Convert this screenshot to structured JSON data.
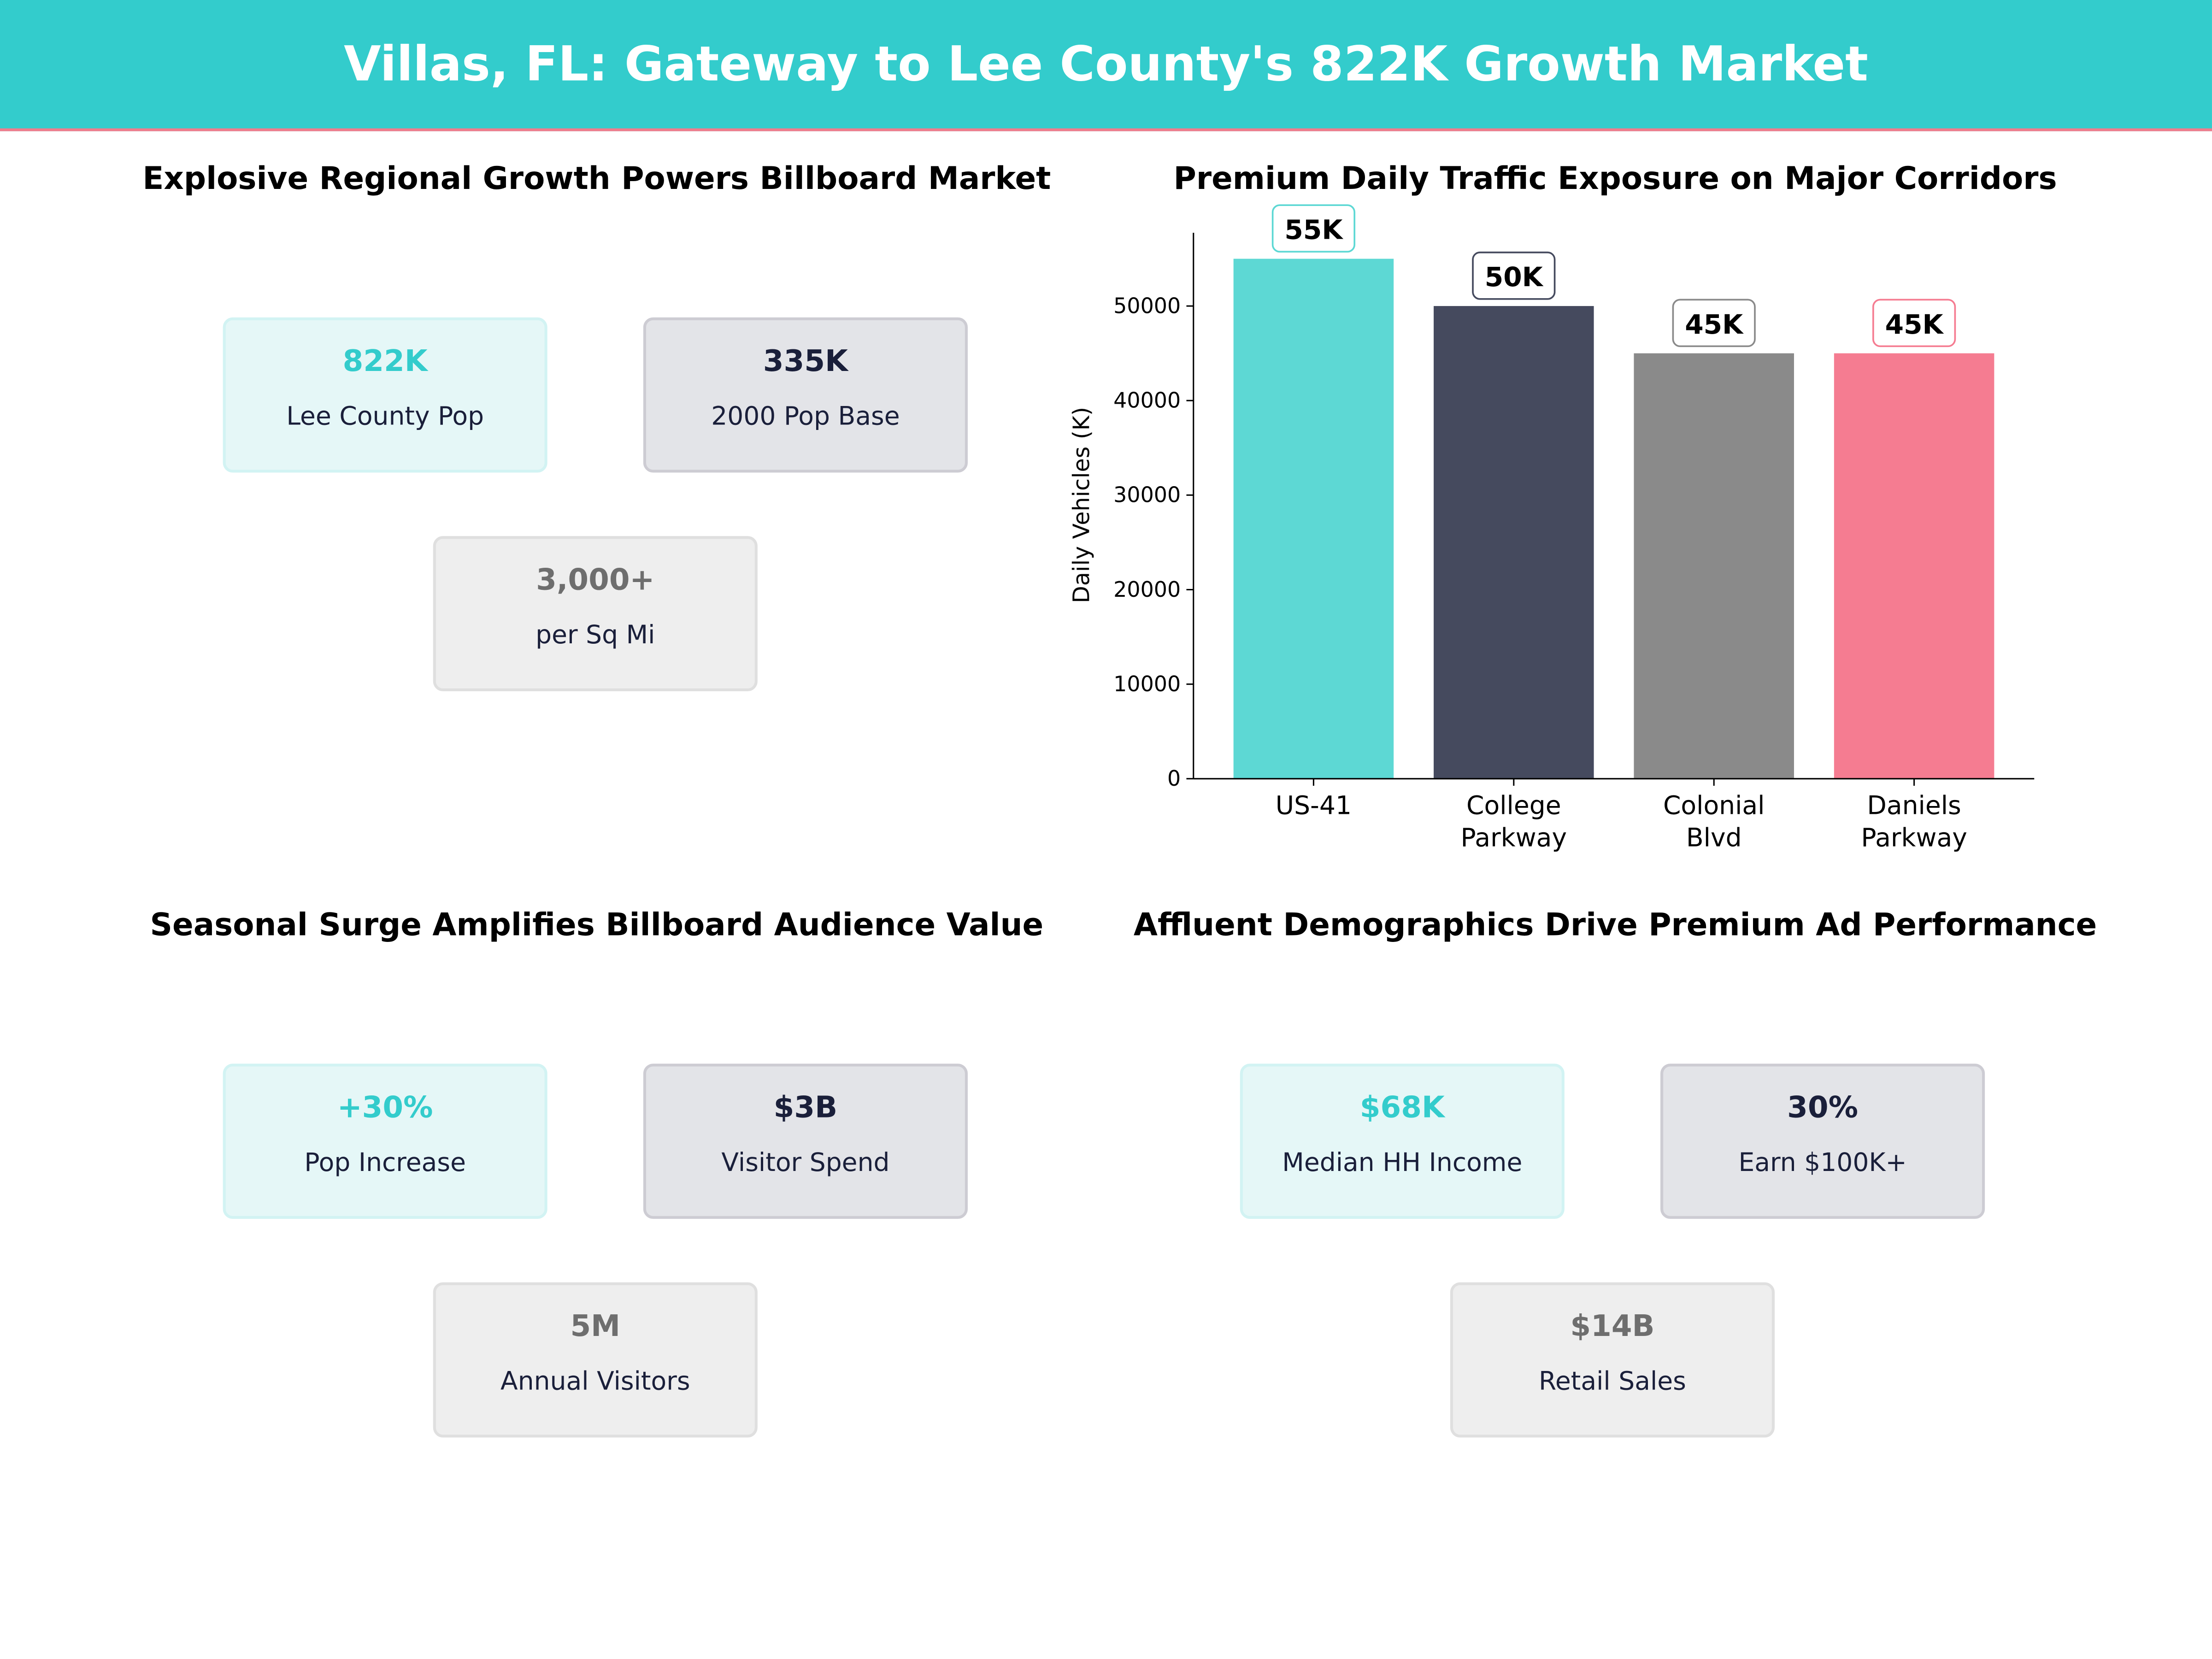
{
  "title": "Villas, FL: Gateway to Lee County's 822K Growth Market",
  "colors": {
    "header": "#33CCCC",
    "accent_line": "#F07C8C",
    "teal": "#33CCCC",
    "dark": "#1A1F3A",
    "gray": "#6E6E6E"
  },
  "panels": [
    {
      "title": "Explosive Regional Growth Powers Billboard Market",
      "cards": [
        {
          "value": "822K",
          "label": "Lee County Pop",
          "style": "teal"
        },
        {
          "value": "335K",
          "label": "2000 Pop Base",
          "style": "dark"
        },
        {
          "value": "3,000+",
          "label": "per Sq Mi",
          "style": "gray"
        }
      ]
    },
    {
      "title": "Premium Daily Traffic Exposure on Major Corridors"
    },
    {
      "title": "Seasonal Surge Amplifies Billboard Audience Value",
      "cards": [
        {
          "value": "+30%",
          "label": "Pop Increase",
          "style": "teal"
        },
        {
          "value": "$3B",
          "label": "Visitor Spend",
          "style": "dark"
        },
        {
          "value": "5M",
          "label": "Annual Visitors",
          "style": "gray"
        }
      ]
    },
    {
      "title": "Affluent Demographics Drive Premium Ad Performance",
      "cards": [
        {
          "value": "$68K",
          "label": "Median HH Income",
          "style": "teal"
        },
        {
          "value": "30%",
          "label": "Earn $100K+",
          "style": "dark"
        },
        {
          "value": "$14B",
          "label": "Retail Sales",
          "style": "gray"
        }
      ]
    }
  ],
  "chart_data": {
    "type": "bar",
    "title": "Premium Daily Traffic Exposure on Major Corridors",
    "categories": [
      [
        "US-41"
      ],
      [
        "College",
        "Parkway"
      ],
      [
        "Colonial",
        "Blvd"
      ],
      [
        "Daniels",
        "Parkway"
      ]
    ],
    "values": [
      55000,
      50000,
      45000,
      45000
    ],
    "data_labels": [
      "55K",
      "50K",
      "45K",
      "45K"
    ],
    "colors": [
      "#5DD8D4",
      "#454A5E",
      "#8A8A8A",
      "#F57C91"
    ],
    "label_border_colors": [
      "#5DD8D4",
      "#454A5E",
      "#8A8A8A",
      "#F57C91"
    ],
    "xlabel": "",
    "ylabel": "Daily Vehicles (K)",
    "ylim": [
      0,
      58000
    ],
    "yticks": [
      0,
      10000,
      20000,
      30000,
      40000,
      50000
    ],
    "grid": false
  }
}
